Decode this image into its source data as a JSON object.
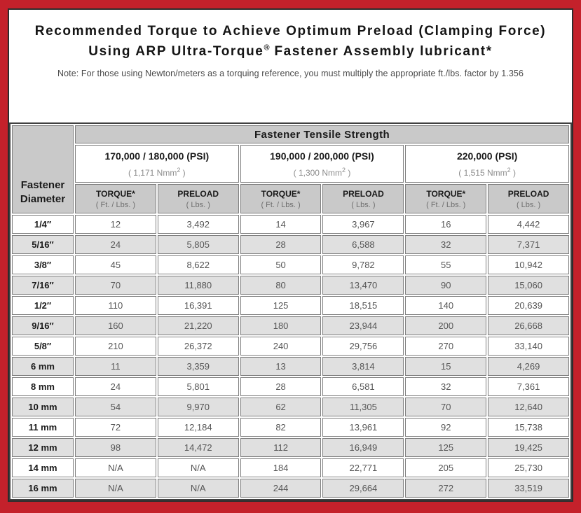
{
  "page": {
    "frame_color": "#c4212b",
    "title_line1": "Recommended Torque to Achieve Optimum Preload (Clamping Force)",
    "title2_pre": "Using ARP Ultra-Torque",
    "title2_sup": "®",
    "title2_post": " Fastener Assembly lubricant*",
    "note": "Note: For those using Newton/meters as a torquing reference, you must multiply the appropriate ft./lbs. factor by 1.356"
  },
  "table": {
    "corner_header": "Fastener Diameter",
    "group_header": "Fastener Tensile Strength",
    "strength_groups": [
      {
        "psi": "170,000 / 180,000 (PSI)",
        "nmm_pre": "( 1,171 Nmm",
        "nmm_sup": "2",
        "nmm_post": " )"
      },
      {
        "psi": "190,000 / 200,000 (PSI)",
        "nmm_pre": "( 1,300 Nmm",
        "nmm_sup": "2",
        "nmm_post": " )"
      },
      {
        "psi": "220,000 (PSI)",
        "nmm_pre": "( 1,515 Nmm",
        "nmm_sup": "2",
        "nmm_post": " )"
      }
    ],
    "col_headers": [
      {
        "label": "TORQUE*",
        "unit": "( Ft. / Lbs. )"
      },
      {
        "label": "PRELOAD",
        "unit": "( Lbs. )"
      },
      {
        "label": "TORQUE*",
        "unit": "( Ft. / Lbs. )"
      },
      {
        "label": "PRELOAD",
        "unit": "( Lbs. )"
      },
      {
        "label": "TORQUE*",
        "unit": "( Ft. / Lbs. )"
      },
      {
        "label": "PRELOAD",
        "unit": "( Lbs. )"
      }
    ],
    "rows": [
      {
        "diameter": "1/4″",
        "values": [
          "12",
          "3,492",
          "14",
          "3,967",
          "16",
          "4,442"
        ]
      },
      {
        "diameter": "5/16″",
        "values": [
          "24",
          "5,805",
          "28",
          "6,588",
          "32",
          "7,371"
        ]
      },
      {
        "diameter": "3/8″",
        "values": [
          "45",
          "8,622",
          "50",
          "9,782",
          "55",
          "10,942"
        ]
      },
      {
        "diameter": "7/16″",
        "values": [
          "70",
          "11,880",
          "80",
          "13,470",
          "90",
          "15,060"
        ]
      },
      {
        "diameter": "1/2″",
        "values": [
          "110",
          "16,391",
          "125",
          "18,515",
          "140",
          "20,639"
        ]
      },
      {
        "diameter": "9/16″",
        "values": [
          "160",
          "21,220",
          "180",
          "23,944",
          "200",
          "26,668"
        ]
      },
      {
        "diameter": "5/8″",
        "values": [
          "210",
          "26,372",
          "240",
          "29,756",
          "270",
          "33,140"
        ]
      },
      {
        "diameter": "6 mm",
        "values": [
          "11",
          "3,359",
          "13",
          "3,814",
          "15",
          "4,269"
        ]
      },
      {
        "diameter": "8 mm",
        "values": [
          "24",
          "5,801",
          "28",
          "6,581",
          "32",
          "7,361"
        ]
      },
      {
        "diameter": "10 mm",
        "values": [
          "54",
          "9,970",
          "62",
          "11,305",
          "70",
          "12,640"
        ]
      },
      {
        "diameter": "11 mm",
        "values": [
          "72",
          "12,184",
          "82",
          "13,961",
          "92",
          "15,738"
        ]
      },
      {
        "diameter": "12 mm",
        "values": [
          "98",
          "14,472",
          "112",
          "16,949",
          "125",
          "19,425"
        ]
      },
      {
        "diameter": "14 mm",
        "values": [
          "N/A",
          "N/A",
          "184",
          "22,771",
          "205",
          "25,730"
        ]
      },
      {
        "diameter": "16 mm",
        "values": [
          "N/A",
          "N/A",
          "244",
          "29,664",
          "272",
          "33,519"
        ]
      }
    ]
  }
}
